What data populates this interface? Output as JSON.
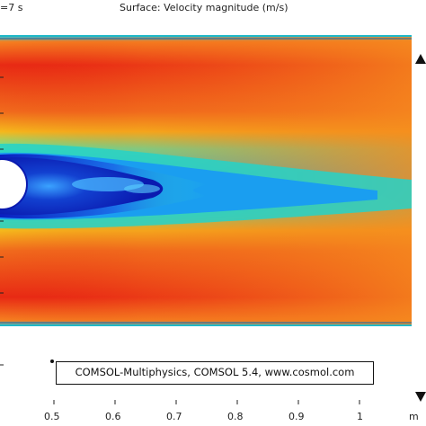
{
  "header": {
    "time_label": "=7 s",
    "surface_title": "Surface: Velocity magnitude (m/s)"
  },
  "credit": {
    "text": "COMSOL-Multiphysics, COMSOL 5.4, www.cosmol.com"
  },
  "x_axis": {
    "ticks": [
      "0.5",
      "0.6",
      "0.7",
      "0.8",
      "0.9",
      "1"
    ],
    "unit": "m"
  },
  "colors": {
    "max": "#e61414",
    "high": "#f57020",
    "mid": "#f5c21a",
    "low": "#26d2d4",
    "min": "#0a1ab0",
    "obstacle": "#ffffff"
  }
}
